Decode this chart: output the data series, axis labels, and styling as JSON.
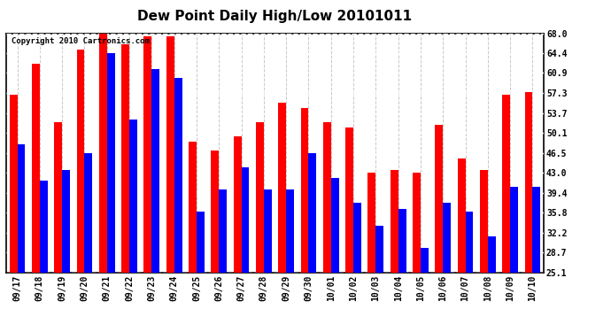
{
  "title": "Dew Point Daily High/Low 20101011",
  "copyright": "Copyright 2010 Cartronics.com",
  "categories": [
    "09/17",
    "09/18",
    "09/19",
    "09/20",
    "09/21",
    "09/22",
    "09/23",
    "09/24",
    "09/25",
    "09/26",
    "09/27",
    "09/28",
    "09/29",
    "09/30",
    "10/01",
    "10/02",
    "10/03",
    "10/04",
    "10/05",
    "10/06",
    "10/07",
    "10/08",
    "10/09",
    "10/10"
  ],
  "highs": [
    57.0,
    62.5,
    52.0,
    65.0,
    68.0,
    66.0,
    67.5,
    67.5,
    48.5,
    47.0,
    49.5,
    52.0,
    55.5,
    54.5,
    52.0,
    51.0,
    43.0,
    43.5,
    43.0,
    51.5,
    45.5,
    43.5,
    57.0,
    57.5
  ],
  "lows": [
    48.0,
    41.5,
    43.5,
    46.5,
    64.5,
    52.5,
    61.5,
    60.0,
    36.0,
    40.0,
    44.0,
    40.0,
    40.0,
    46.5,
    42.0,
    37.5,
    33.5,
    36.5,
    29.5,
    37.5,
    36.0,
    31.5,
    40.5,
    40.5
  ],
  "high_color": "#ff0000",
  "low_color": "#0000ff",
  "background_color": "#ffffff",
  "plot_background": "#ffffff",
  "grid_color": "#c8c8c8",
  "yticks": [
    25.1,
    28.7,
    32.2,
    35.8,
    39.4,
    43.0,
    46.5,
    50.1,
    53.7,
    57.3,
    60.9,
    64.4,
    68.0
  ],
  "ylim_min": 25.1,
  "ylim_max": 68.0,
  "bar_width": 0.35,
  "title_fontsize": 11,
  "copyright_fontsize": 6.5,
  "tick_fontsize": 7,
  "ytick_fontsize": 7
}
